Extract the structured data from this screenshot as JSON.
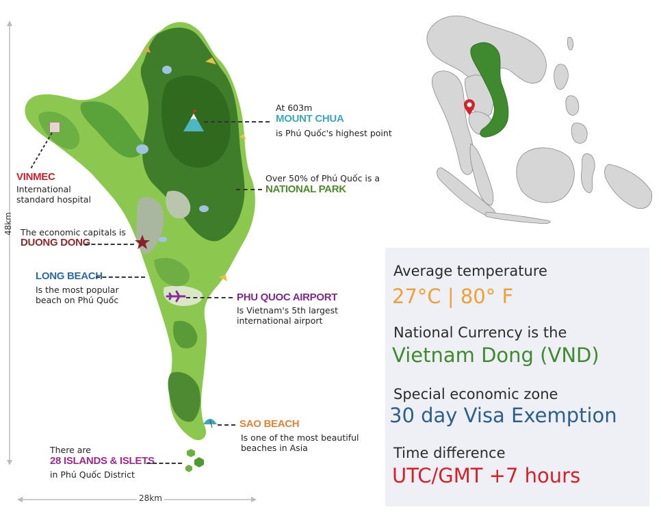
{
  "dimensions": {
    "height": "48km",
    "width": "28km"
  },
  "labels": {
    "mount_chua": {
      "pre": "At 603m",
      "name": "MOUNT CHUA",
      "desc": "is Phú Quốc's highest point",
      "color": "#3aa9b8"
    },
    "national_park": {
      "pre": "Over 50% of Phú Quốc is a",
      "name": "NATIONAL PARK",
      "color": "#4a8b2a"
    },
    "vinmec": {
      "name": "VINMEC",
      "desc1": "International",
      "desc2": "standard hospital",
      "color": "#cc1f2d"
    },
    "duong_dong": {
      "pre": "The economic capitals is",
      "name": "DUONG DONG",
      "color": "#8b2a2a"
    },
    "long_beach": {
      "name": "LONG BEACH",
      "desc1": "Is the most popular",
      "desc2": "beach on Phú Quốc",
      "color": "#2b6aa3"
    },
    "airport": {
      "name": "PHU QUOC AIRPORT",
      "desc1": "Is Vietnam's 5th largest",
      "desc2": "international airport",
      "color": "#7b2a8a"
    },
    "sao_beach": {
      "name": "SAO BEACH",
      "desc1": "Is one of the most beautiful",
      "desc2": "beaches in Asia",
      "color": "#e0843a"
    },
    "islands": {
      "pre": "There are",
      "name": "28 ISLANDS & ISLETS",
      "desc": "in Phú Quốc District",
      "color": "#9b2a8a"
    }
  },
  "info": {
    "temperature_heading": "Average temperature",
    "temperature_value": "27°C | 80° F",
    "currency_heading": "National Currency is the",
    "currency_value": "Vietnam Dong (VND)",
    "zone_heading": "Special economic zone",
    "zone_value": "30 day Visa Exemption",
    "time_heading": "Time difference",
    "time_value": "UTC/GMT +7 hours"
  },
  "colors": {
    "temperature": "#f0a033",
    "currency": "#3f8a2f",
    "zone": "#2b5f8f",
    "time": "#d42027",
    "map_dark": "#3f7d2a",
    "map_light": "#8cc850",
    "vietnam": "#3f8a2f"
  },
  "icons": [
    "hospital-icon",
    "mountain-icon",
    "star-icon",
    "airplane-icon",
    "umbrella-icon",
    "map-pin-icon",
    "hexagon-icon"
  ]
}
